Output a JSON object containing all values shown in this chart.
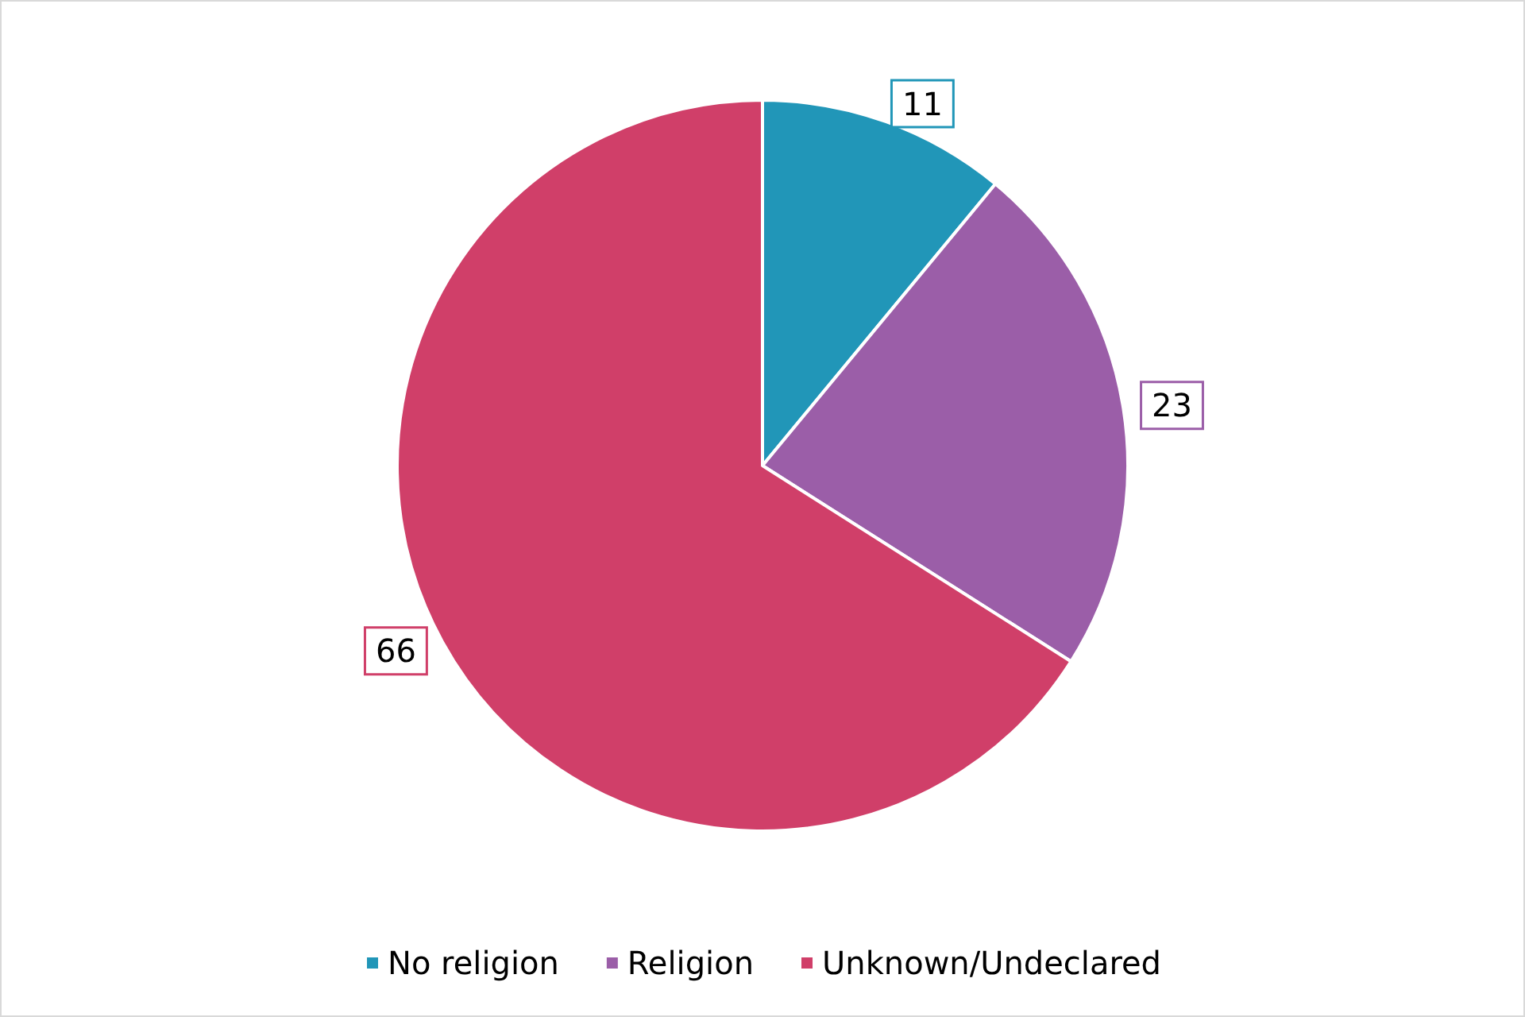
{
  "chart_data": {
    "type": "pie",
    "categories": [
      "No religion",
      "Religion",
      "Unknown/Undeclared"
    ],
    "values": [
      11,
      23,
      66
    ],
    "colors": [
      "#2196b8",
      "#9b5ea8",
      "#d03f69"
    ],
    "data_labels": true,
    "legend": "bottom"
  }
}
